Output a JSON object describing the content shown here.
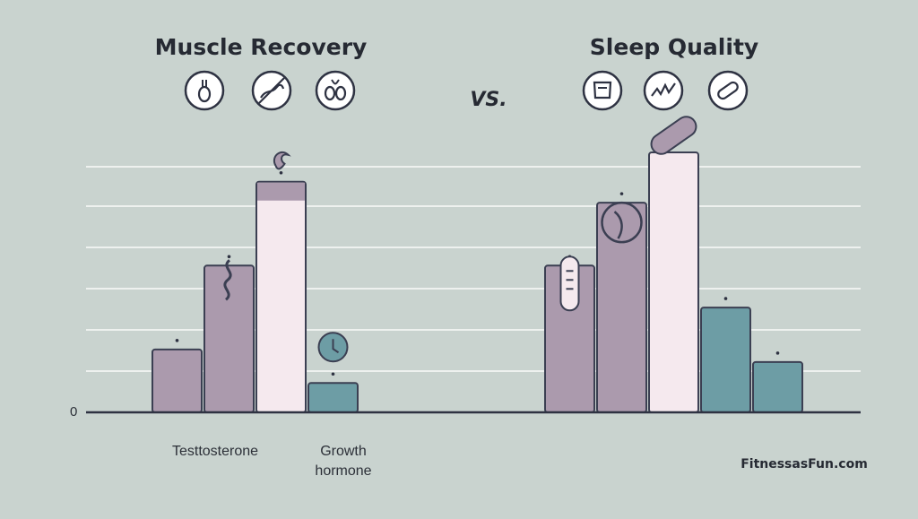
{
  "colors": {
    "background": "#c9d3cf",
    "mauve": "#ab9aad",
    "pink": "#f5e9ee",
    "teal": "#6d9da5",
    "outline": "#3b3f52",
    "grid": "#eef1ef"
  },
  "icons": {
    "left": [
      "body-icon",
      "no-dumbbell-icon",
      "kidney-icon"
    ],
    "right": [
      "pillow-icon",
      "zigzag-icon",
      "capsule-icon"
    ]
  },
  "brand": "FitnessasFun.com",
  "vs_label": "VS.",
  "chart_data": [
    {
      "type": "bar",
      "title": "Muscle Recovery",
      "ytick": "0",
      "ylim": [
        0,
        6
      ],
      "categories": [
        "",
        "",
        "",
        ""
      ],
      "values": [
        1.5,
        3.5,
        5.5,
        0.7
      ],
      "colors": [
        "#ab9aad",
        "#ab9aad",
        "#f5e9ee",
        "#6d9da5"
      ],
      "category_labels": [
        "Testtosterone",
        "Growth hormone"
      ]
    },
    {
      "type": "bar",
      "title": "Sleep Quality",
      "ylim": [
        0,
        6
      ],
      "categories": [
        "",
        "",
        "",
        "",
        ""
      ],
      "values": [
        3.5,
        5.0,
        6.2,
        2.5,
        1.2
      ],
      "colors": [
        "#ab9aad",
        "#ab9aad",
        "#f5e9ee",
        "#6d9da5",
        "#6d9da5"
      ]
    }
  ]
}
